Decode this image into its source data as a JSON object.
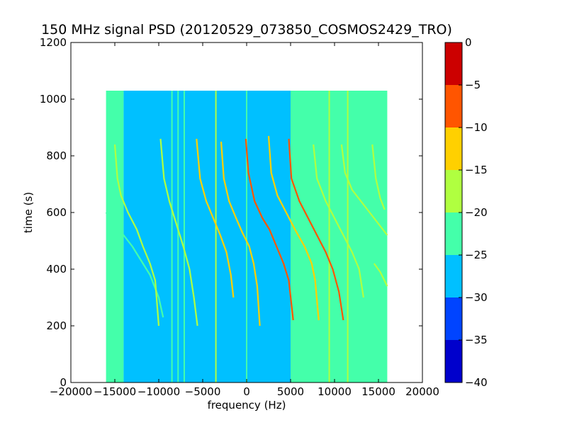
{
  "chart_data": {
    "type": "heatmap",
    "title": "150 MHz signal PSD (20120529_073850_COSMOS2429_TRO)",
    "xlabel": "frequency (Hz)",
    "ylabel": "time (s)",
    "xlim": [
      -20000,
      20000
    ],
    "ylim": [
      0,
      1200
    ],
    "xticks": [
      -20000,
      -15000,
      -10000,
      -5000,
      0,
      5000,
      10000,
      15000,
      20000
    ],
    "xtick_labels": [
      "−20000",
      "−15000",
      "−10000",
      "−5000",
      "0",
      "5000",
      "10000",
      "15000",
      "20000"
    ],
    "yticks": [
      0,
      200,
      400,
      600,
      800,
      1000,
      1200
    ],
    "ytick_labels": [
      "0",
      "200",
      "400",
      "600",
      "800",
      "1000",
      "1200"
    ],
    "data_extent": {
      "x": [
        -16000,
        16000
      ],
      "y": [
        0,
        1030
      ]
    },
    "colorbar": {
      "levels": [
        -40,
        -35,
        -30,
        -25,
        -20,
        -15,
        -10,
        -5,
        0
      ],
      "tick_labels": [
        "−40",
        "−35",
        "−30",
        "−25",
        "−20",
        "−15",
        "−10",
        "−5",
        "0"
      ],
      "colors": [
        "#0000cc",
        "#0044ff",
        "#00c0ff",
        "#44ffaa",
        "#b0ff40",
        "#ffd000",
        "#ff5500",
        "#cc0000"
      ]
    },
    "background_regions": [
      {
        "x": [
          -16000,
          -14000
        ],
        "level_color": "#44ffaa"
      },
      {
        "x": [
          -14000,
          5000
        ],
        "level_color": "#00c0ff"
      },
      {
        "x": [
          5000,
          16000
        ],
        "level_color": "#44ffaa"
      }
    ],
    "vertical_lines": [
      {
        "x": -8500,
        "color": "#44ffaa"
      },
      {
        "x": -7800,
        "color": "#44ffaa"
      },
      {
        "x": -7100,
        "color": "#44ffaa"
      },
      {
        "x": -3500,
        "color": "#b0ff40"
      },
      {
        "x": 0,
        "color": "#44ffaa"
      },
      {
        "x": 9400,
        "color": "#b0ff40"
      },
      {
        "x": 11500,
        "color": "#b0ff40"
      }
    ],
    "traces": [
      {
        "name": "",
        "color": "#44ffaa",
        "points": [
          [
            -16000,
            600
          ],
          [
            -15000,
            560
          ],
          [
            -14000,
            520
          ],
          [
            -13000,
            480
          ],
          [
            -12000,
            430
          ],
          [
            -11000,
            380
          ],
          [
            -10000,
            300
          ],
          [
            -9500,
            230
          ]
        ]
      },
      {
        "name": "",
        "color": "#b0ff40",
        "points": [
          [
            -15000,
            840
          ],
          [
            -14700,
            720
          ],
          [
            -14300,
            660
          ],
          [
            -13500,
            600
          ],
          [
            -12500,
            540
          ],
          [
            -11800,
            480
          ],
          [
            -11000,
            420
          ],
          [
            -10400,
            360
          ],
          [
            -10000,
            200
          ]
        ]
      },
      {
        "name": "",
        "color": "#b0ff40",
        "points": [
          [
            -9800,
            860
          ],
          [
            -9400,
            720
          ],
          [
            -8800,
            640
          ],
          [
            -8000,
            560
          ],
          [
            -7200,
            480
          ],
          [
            -6500,
            400
          ],
          [
            -6000,
            300
          ],
          [
            -5600,
            200
          ]
        ]
      },
      {
        "name": "",
        "color": "#ffd000",
        "points": [
          [
            -5700,
            860
          ],
          [
            -5300,
            720
          ],
          [
            -4600,
            640
          ],
          [
            -3800,
            580
          ],
          [
            -3000,
            520
          ],
          [
            -2300,
            460
          ],
          [
            -1800,
            380
          ],
          [
            -1500,
            300
          ]
        ]
      },
      {
        "name": "",
        "color": "#ffd000",
        "points": [
          [
            -2900,
            850
          ],
          [
            -2600,
            720
          ],
          [
            -2000,
            640
          ],
          [
            -1200,
            580
          ],
          [
            -500,
            530
          ],
          [
            300,
            480
          ],
          [
            800,
            420
          ],
          [
            1200,
            340
          ],
          [
            1500,
            200
          ]
        ]
      },
      {
        "name": "",
        "color": "#ff5500",
        "points": [
          [
            -100,
            860
          ],
          [
            200,
            740
          ],
          [
            900,
            640
          ],
          [
            1800,
            580
          ],
          [
            2600,
            540
          ],
          [
            3400,
            480
          ],
          [
            4200,
            420
          ],
          [
            4800,
            360
          ],
          [
            5300,
            220
          ]
        ]
      },
      {
        "name": "",
        "color": "#ffd000",
        "points": [
          [
            2500,
            870
          ],
          [
            2800,
            740
          ],
          [
            3500,
            660
          ],
          [
            4500,
            600
          ],
          [
            5500,
            540
          ],
          [
            6600,
            480
          ],
          [
            7400,
            420
          ],
          [
            7800,
            360
          ],
          [
            8200,
            220
          ]
        ]
      },
      {
        "name": "",
        "color": "#ff5500",
        "points": [
          [
            4800,
            860
          ],
          [
            5100,
            720
          ],
          [
            6000,
            640
          ],
          [
            7000,
            580
          ],
          [
            8000,
            520
          ],
          [
            9000,
            460
          ],
          [
            9800,
            400
          ],
          [
            10500,
            320
          ],
          [
            11000,
            220
          ]
        ]
      },
      {
        "name": "",
        "color": "#b0ff40",
        "points": [
          [
            7600,
            840
          ],
          [
            8000,
            720
          ],
          [
            9000,
            640
          ],
          [
            10000,
            580
          ],
          [
            11000,
            520
          ],
          [
            12000,
            460
          ],
          [
            12800,
            400
          ],
          [
            13300,
            300
          ]
        ]
      },
      {
        "name": "",
        "color": "#b0ff40",
        "points": [
          [
            10800,
            840
          ],
          [
            11200,
            740
          ],
          [
            12000,
            680
          ],
          [
            13000,
            640
          ],
          [
            14000,
            600
          ],
          [
            15000,
            560
          ],
          [
            16000,
            520
          ]
        ]
      },
      {
        "name": "",
        "color": "#b0ff40",
        "points": [
          [
            14300,
            840
          ],
          [
            14700,
            720
          ],
          [
            15200,
            650
          ],
          [
            15700,
            610
          ]
        ]
      },
      {
        "name": "",
        "color": "#b0ff40",
        "points": [
          [
            14500,
            420
          ],
          [
            15200,
            390
          ],
          [
            16000,
            340
          ]
        ]
      }
    ]
  }
}
